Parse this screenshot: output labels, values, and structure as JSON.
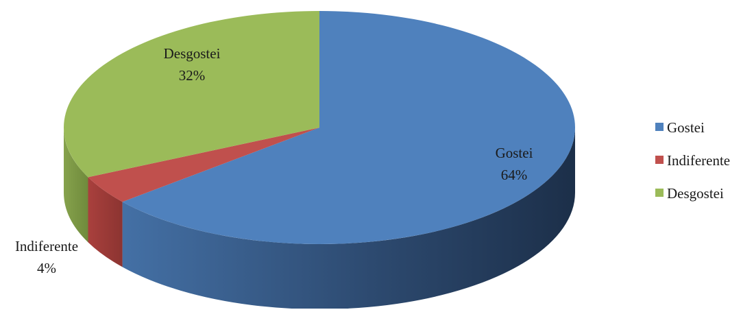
{
  "chart_data": {
    "type": "pie",
    "title": "",
    "categories": [
      "Gostei",
      "Indiferente",
      "Desgostei"
    ],
    "values": [
      64,
      4,
      32
    ],
    "labels": [
      "64%",
      "4%",
      "32%"
    ],
    "colors": [
      "#4f81bd",
      "#c0504d",
      "#9bbb59"
    ],
    "legend": {
      "position": "right",
      "entries": [
        "Gostei",
        "Indiferente",
        "Desgostei"
      ]
    },
    "three_d": true
  }
}
